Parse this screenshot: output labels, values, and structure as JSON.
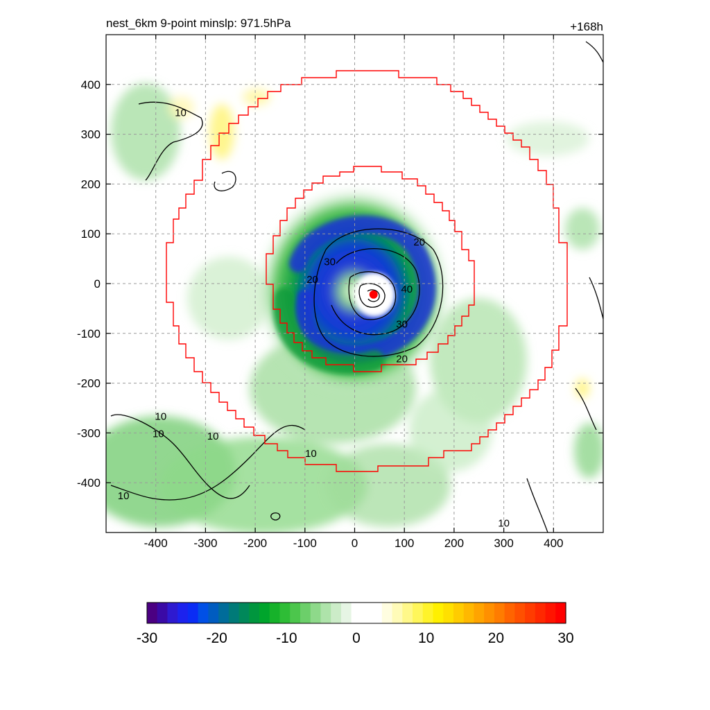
{
  "chart_data": {
    "type": "heatmap",
    "title": "nest_6km  9-point minslp: 971.5hPa",
    "time_label": "+168h",
    "x_ticks": [
      -400,
      -300,
      -200,
      -100,
      0,
      100,
      200,
      300,
      400
    ],
    "y_ticks": [
      400,
      300,
      200,
      100,
      0,
      -100,
      -200,
      -300,
      -400
    ],
    "xlim": [
      -500,
      500
    ],
    "ylim": [
      -500,
      500
    ],
    "grid": true,
    "colorbar": {
      "ticks": [
        -30,
        -20,
        -10,
        0,
        10,
        20,
        30
      ],
      "range": [
        -30,
        30
      ],
      "colors": [
        "#4b0082",
        "#3a0aa6",
        "#2e1ad0",
        "#1c22ee",
        "#0a2cf5",
        "#0050e6",
        "#005cc0",
        "#006c9a",
        "#007a78",
        "#00885a",
        "#00963e",
        "#00a52c",
        "#16b22a",
        "#2ebd36",
        "#4cc64c",
        "#6ccf6a",
        "#8ed98a",
        "#aee3aa",
        "#ccecc8",
        "#e6f5e4",
        "#ffffff",
        "#ffffff",
        "#ffffff",
        "#fffde0",
        "#fffbb8",
        "#fff88a",
        "#fff65a",
        "#fff32a",
        "#fff000",
        "#ffe000",
        "#ffcc00",
        "#ffb800",
        "#ffa400",
        "#ff9000",
        "#ff7c00",
        "#ff6400",
        "#ff5000",
        "#ff3c00",
        "#ff2800",
        "#ff1400",
        "#ff0000"
      ]
    },
    "contour_labels": [
      {
        "text": "10",
        "x": -350,
        "y": 345
      },
      {
        "text": "20",
        "x": 130,
        "y": 85
      },
      {
        "text": "30",
        "x": -50,
        "y": 45
      },
      {
        "text": "20",
        "x": -85,
        "y": 10
      },
      {
        "text": "40",
        "x": 105,
        "y": -10
      },
      {
        "text": "30",
        "x": 95,
        "y": -80
      },
      {
        "text": "20",
        "x": 95,
        "y": -150
      },
      {
        "text": "10",
        "x": -390,
        "y": -265
      },
      {
        "text": "10",
        "x": -395,
        "y": -300
      },
      {
        "text": "10",
        "x": -285,
        "y": -305
      },
      {
        "text": "10",
        "x": -88,
        "y": -340
      },
      {
        "text": "10",
        "x": -465,
        "y": -425
      },
      {
        "text": "10",
        "x": 300,
        "y": -480
      }
    ],
    "storm_center": {
      "x": 38,
      "y": -22,
      "color": "#ff0000"
    },
    "nest_boundaries_color": "#ff0000"
  }
}
